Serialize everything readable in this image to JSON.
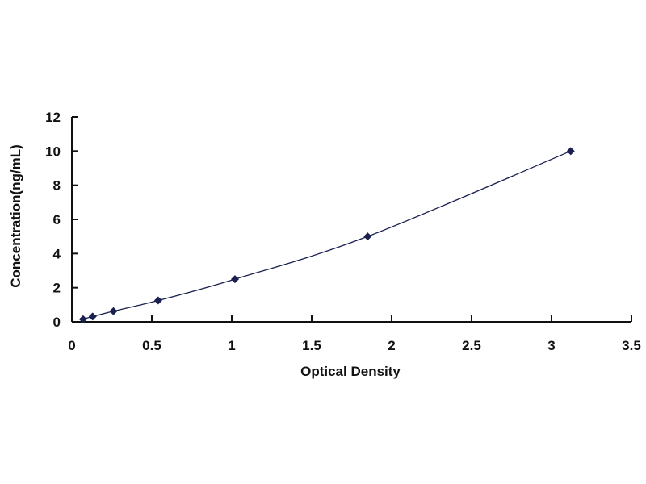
{
  "chart_data": {
    "type": "scatter",
    "title": "",
    "xlabel": "Optical Density",
    "ylabel": "Concentration(ng/mL)",
    "xlim": [
      0,
      3.5
    ],
    "ylim": [
      0,
      12
    ],
    "xticks": [
      "0",
      "0.5",
      "1",
      "1.5",
      "2",
      "2.5",
      "3",
      "3.5"
    ],
    "yticks": [
      "0",
      "2",
      "4",
      "6",
      "8",
      "10",
      "12"
    ],
    "grid": false,
    "legend": "none",
    "trendline": "smooth curve",
    "marker": "diamond",
    "series_color": "#1a2050",
    "x": [
      0.07,
      0.13,
      0.26,
      0.54,
      1.02,
      1.85,
      3.12
    ],
    "y": [
      0.156,
      0.312,
      0.625,
      1.25,
      2.5,
      5,
      10
    ]
  }
}
